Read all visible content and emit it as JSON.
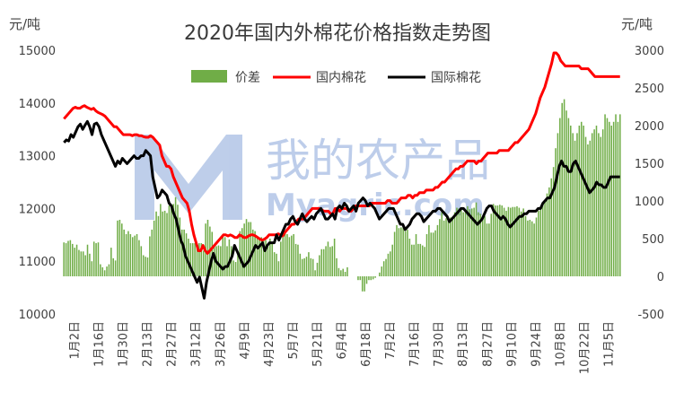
{
  "colors": {
    "diff_bar": "#70AD47",
    "domestic_line": "#FF0000",
    "intl_line": "#000000",
    "watermark": "#8EA9DB"
  },
  "watermark": {
    "brand_cn": "我的农产品",
    "brand_en": "Myagric.com"
  },
  "chart_data": {
    "type": "combo",
    "title": "2020年国内外棉花价格指数走势图",
    "left_axis_unit": "元/吨",
    "right_axis_unit": "元/吨",
    "left_axis": {
      "min": 10000,
      "max": 15000,
      "step": 1000,
      "ticks": [
        "10000",
        "11000",
        "12000",
        "13000",
        "14000",
        "15000"
      ]
    },
    "right_axis": {
      "min": -500,
      "max": 3000,
      "step": 500,
      "ticks": [
        "-500",
        "0",
        "500",
        "1000",
        "1500",
        "2000",
        "2500",
        "3000"
      ]
    },
    "x_labels": [
      "1月2日",
      "1月16日",
      "1月30日",
      "2月13日",
      "2月27日",
      "3月12日",
      "3月26日",
      "4月9日",
      "4月23日",
      "5月7日",
      "5月21日",
      "6月4日",
      "6月18日",
      "7月2日",
      "7月16日",
      "7月30日",
      "8月13日",
      "8月27日",
      "9月10日",
      "9月24日",
      "10月8日",
      "10月22日",
      "11月5日"
    ],
    "legend": {
      "position": "top",
      "items": [
        "价差",
        "国内棉花",
        "国际棉花"
      ]
    },
    "series": [
      {
        "name": "价差",
        "type": "bar",
        "axis": "right",
        "color": "#70AD47",
        "values": [
          450,
          440,
          470,
          480,
          430,
          380,
          420,
          350,
          330,
          330,
          280,
          420,
          300,
          200,
          460,
          440,
          450,
          160,
          120,
          80,
          130,
          160,
          380,
          240,
          210,
          740,
          750,
          700,
          620,
          560,
          600,
          560,
          520,
          540,
          560,
          480,
          400,
          280,
          260,
          250,
          530,
          620,
          740,
          860,
          800,
          960,
          860,
          870,
          840,
          940,
          900,
          960,
          1050,
          950,
          780,
          620,
          620,
          570,
          500,
          440,
          440,
          440,
          420,
          440,
          440,
          340,
          700,
          750,
          660,
          590,
          410,
          400,
          410,
          400,
          560,
          520,
          400,
          490,
          400,
          210,
          190,
          330,
          600,
          640,
          700,
          760,
          720,
          720,
          620,
          600,
          500,
          500,
          520,
          490,
          480,
          400,
          500,
          440,
          320,
          300,
          200,
          460,
          520,
          600,
          560,
          520,
          540,
          560,
          430,
          420,
          300,
          230,
          240,
          260,
          320,
          240,
          230,
          80,
          180,
          280,
          360,
          360,
          400,
          460,
          390,
          400,
          500,
          240,
          110,
          80,
          100,
          60,
          120,
          0,
          0,
          0,
          0,
          -50,
          -50,
          -200,
          -200,
          -100,
          -50,
          -50,
          -40,
          -20,
          0,
          50,
          130,
          200,
          230,
          300,
          330,
          420,
          590,
          680,
          640,
          650,
          650,
          600,
          620,
          500,
          420,
          420,
          560,
          430,
          430,
          410,
          390,
          560,
          680,
          580,
          580,
          610,
          680,
          760,
          850,
          740,
          770,
          770,
          780,
          750,
          850,
          910,
          900,
          900,
          850,
          880,
          930,
          890,
          900,
          910,
          980,
          850,
          830,
          790,
          800,
          700,
          700,
          830,
          960,
          940,
          940,
          950,
          940,
          910,
          870,
          920,
          910,
          920,
          920,
          930,
          910,
          860,
          900,
          800,
          740,
          750,
          730,
          700,
          780,
          870,
          920,
          950,
          1000,
          1100,
          1180,
          1300,
          1450,
          1700,
          1900,
          2100,
          2300,
          2350,
          2200,
          2100,
          2000,
          1900,
          1800,
          1900,
          2000,
          2050,
          2000,
          1850,
          1750,
          1800,
          1900,
          1950,
          2000,
          1900,
          1850,
          1950,
          2150,
          2100,
          2050,
          2000,
          2050,
          2150,
          2050,
          2150
        ]
      },
      {
        "name": "国内棉花",
        "type": "line",
        "axis": "left",
        "color": "#FF0000",
        "width": 3,
        "values": [
          13700,
          13750,
          13800,
          13850,
          13900,
          13920,
          13900,
          13900,
          13930,
          13950,
          13920,
          13900,
          13880,
          13900,
          13850,
          13820,
          13800,
          13780,
          13750,
          13700,
          13650,
          13600,
          13550,
          13550,
          13500,
          13450,
          13400,
          13400,
          13400,
          13400,
          13380,
          13400,
          13400,
          13380,
          13380,
          13360,
          13350,
          13350,
          13380,
          13350,
          13300,
          13250,
          13200,
          13000,
          12900,
          12800,
          12800,
          12750,
          12600,
          12500,
          12400,
          12300,
          12200,
          12150,
          12100,
          11950,
          11700,
          11500,
          11350,
          11200,
          11200,
          11300,
          11200,
          11150,
          11200,
          11250,
          11300,
          11350,
          11400,
          11450,
          11500,
          11500,
          11480,
          11500,
          11480,
          11450,
          11450,
          11500,
          11480,
          11450,
          11450,
          11480,
          11500,
          11500,
          11480,
          11450,
          11420,
          11400,
          11420,
          11450,
          11500,
          11500,
          11500,
          11500,
          11520,
          11500,
          11480,
          11550,
          11600,
          11650,
          11700,
          11700,
          11750,
          11800,
          11800,
          11800,
          11850,
          11900,
          11950,
          12000,
          12000,
          12000,
          12000,
          11980,
          11950,
          11950,
          11950,
          11900,
          11900,
          12000,
          12000,
          11950,
          12000,
          12000,
          12000,
          11950,
          11950,
          12000,
          12050,
          12050,
          12050,
          12050,
          12050,
          12050,
          12050,
          12100,
          12100,
          12100,
          12100,
          12100,
          12100,
          12100,
          12150,
          12150,
          12100,
          12100,
          12100,
          12150,
          12200,
          12200,
          12200,
          12250,
          12250,
          12200,
          12250,
          12250,
          12300,
          12300,
          12300,
          12350,
          12350,
          12350,
          12350,
          12400,
          12400,
          12450,
          12500,
          12500,
          12550,
          12600,
          12650,
          12700,
          12750,
          12750,
          12800,
          12800,
          12850,
          12900,
          12900,
          12900,
          12900,
          12850,
          12900,
          12900,
          12950,
          13000,
          13050,
          13050,
          13050,
          13050,
          13050,
          13100,
          13100,
          13100,
          13100,
          13100,
          13150,
          13200,
          13250,
          13250,
          13300,
          13350,
          13400,
          13450,
          13500,
          13600,
          13700,
          13800,
          13950,
          14100,
          14200,
          14300,
          14450,
          14600,
          14750,
          14950,
          14950,
          14900,
          14800,
          14750,
          14700,
          14700,
          14700,
          14700,
          14700,
          14700,
          14700,
          14650,
          14650,
          14650,
          14650,
          14600,
          14550,
          14500,
          14500,
          14500,
          14500,
          14500,
          14500,
          14500,
          14500,
          14500,
          14500,
          14500,
          14500
        ]
      },
      {
        "name": "国际棉花",
        "type": "line",
        "axis": "left",
        "color": "#000000",
        "width": 3,
        "values": [
          13250,
          13300,
          13280,
          13400,
          13350,
          13450,
          13550,
          13600,
          13500,
          13580,
          13650,
          13550,
          13400,
          13600,
          13620,
          13550,
          13400,
          13300,
          13200,
          13100,
          13000,
          12900,
          12800,
          12900,
          12850,
          12950,
          12900,
          12850,
          12900,
          12950,
          13000,
          12950,
          12950,
          13000,
          13000,
          13100,
          13050,
          13000,
          12600,
          12400,
          12200,
          12250,
          12350,
          12300,
          12250,
          12100,
          12050,
          11900,
          11800,
          11600,
          11400,
          11300,
          11100,
          11000,
          10900,
          10800,
          10700,
          10600,
          10700,
          10500,
          10300,
          10600,
          10800,
          11000,
          11150,
          11000,
          10950,
          10900,
          10850,
          10900,
          10900,
          11000,
          11100,
          11300,
          11200,
          11100,
          11000,
          10900,
          10950,
          11000,
          11100,
          11200,
          11300,
          11250,
          11300,
          11350,
          11200,
          11300,
          11350,
          11350,
          11350,
          11500,
          11400,
          11500,
          11600,
          11700,
          11700,
          11800,
          11850,
          11750,
          11700,
          11800,
          11900,
          11800,
          11750,
          11800,
          11850,
          11800,
          11900,
          11950,
          12000,
          11900,
          11800,
          11800,
          11850,
          11900,
          11800,
          12000,
          12050,
          12000,
          12100,
          12050,
          11950,
          12000,
          12050,
          11950,
          12100,
          12150,
          12200,
          12150,
          12050,
          12100,
          12050,
          12000,
          11900,
          11800,
          11850,
          11900,
          11950,
          12000,
          12000,
          12000,
          11900,
          11800,
          11700,
          11700,
          11600,
          11650,
          11700,
          11800,
          11850,
          11900,
          11900,
          11850,
          11750,
          11800,
          11850,
          11900,
          11950,
          11950,
          12000,
          12000,
          11950,
          11900,
          11850,
          11750,
          11800,
          11850,
          11900,
          11950,
          12000,
          12000,
          11950,
          11900,
          11850,
          11800,
          11750,
          11700,
          11750,
          11800,
          11900,
          12000,
          12050,
          12050,
          11950,
          11900,
          11850,
          11800,
          11850,
          11800,
          11700,
          11650,
          11700,
          11750,
          11800,
          11850,
          11850,
          11900,
          11900,
          11950,
          11950,
          11950,
          11950,
          12000,
          12000,
          12100,
          12150,
          12200,
          12200,
          12300,
          12400,
          12600,
          12800,
          12900,
          12800,
          12800,
          12700,
          12700,
          12850,
          12900,
          12800,
          12700,
          12600,
          12500,
          12400,
          12300,
          12350,
          12400,
          12500,
          12450,
          12450,
          12400,
          12400,
          12500,
          12600,
          12600,
          12600,
          12600,
          12600
        ]
      }
    ]
  }
}
